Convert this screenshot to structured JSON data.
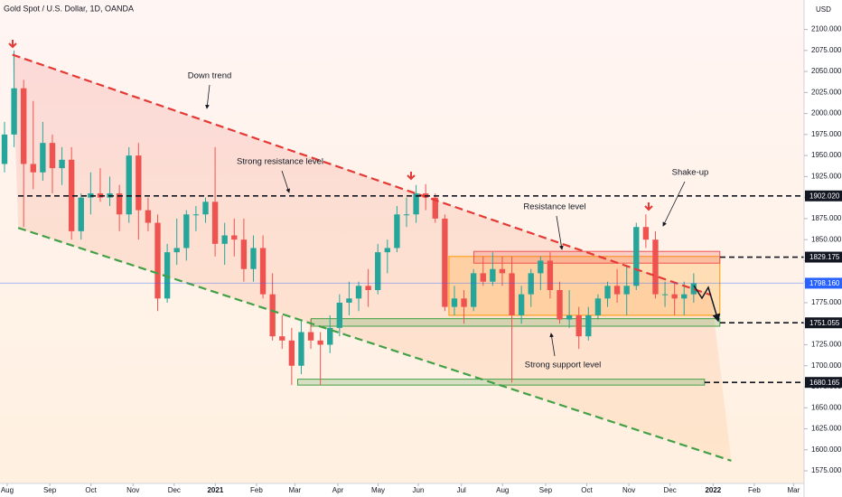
{
  "chart_data": {
    "type": "candlestick",
    "title": "Gold Spot / U.S. Dollar, 1D, OANDA",
    "axis_unit": "USD",
    "up_color": "#26a69a",
    "down_color": "#ef5350",
    "grid": false,
    "xlim": [
      0,
      84
    ],
    "xticks": [
      {
        "value": 0.75,
        "label": "Aug"
      },
      {
        "value": 5.2,
        "label": "Sep"
      },
      {
        "value": 9.5,
        "label": "Oct"
      },
      {
        "value": 13.9,
        "label": "Nov"
      },
      {
        "value": 18.2,
        "label": "Dec"
      },
      {
        "value": 22.5,
        "label": "2021"
      },
      {
        "value": 26.8,
        "label": "Feb"
      },
      {
        "value": 30.8,
        "label": "Mar"
      },
      {
        "value": 35.3,
        "label": "Apr"
      },
      {
        "value": 39.5,
        "label": "May"
      },
      {
        "value": 43.7,
        "label": "Jun"
      },
      {
        "value": 48.2,
        "label": "Jul"
      },
      {
        "value": 52.5,
        "label": "Aug"
      },
      {
        "value": 57.0,
        "label": "Sep"
      },
      {
        "value": 61.3,
        "label": "Oct"
      },
      {
        "value": 65.7,
        "label": "Nov"
      },
      {
        "value": 70.0,
        "label": "Dec"
      },
      {
        "value": 74.5,
        "label": "2022"
      },
      {
        "value": 78.8,
        "label": "Feb"
      },
      {
        "value": 82.9,
        "label": "Mar"
      }
    ],
    "ylim": [
      1560,
      2135
    ],
    "yticks": [
      {
        "value": 1575,
        "label": "1575.000"
      },
      {
        "value": 1600,
        "label": "1600.000"
      },
      {
        "value": 1625,
        "label": "1625.000"
      },
      {
        "value": 1650,
        "label": "1650.000"
      },
      {
        "value": 1675,
        "label": "1675.000"
      },
      {
        "value": 1700,
        "label": "1700.000"
      },
      {
        "value": 1725,
        "label": "1725.000"
      },
      {
        "value": 1750,
        "label": "1750.000"
      },
      {
        "value": 1775,
        "label": "1775.000"
      },
      {
        "value": 1800,
        "label": "1800.000"
      },
      {
        "value": 1825,
        "label": "1825.000"
      },
      {
        "value": 1850,
        "label": "1850.000"
      },
      {
        "value": 1875,
        "label": "1875.000"
      },
      {
        "value": 1900,
        "label": "1900.000"
      },
      {
        "value": 1925,
        "label": "1925.000"
      },
      {
        "value": 1950,
        "label": "1950.000"
      },
      {
        "value": 1975,
        "label": "1975.000"
      },
      {
        "value": 2000,
        "label": "2000.000"
      },
      {
        "value": 2025,
        "label": "2025.000"
      },
      {
        "value": 2050,
        "label": "2050.000"
      },
      {
        "value": 2075,
        "label": "2075.000"
      },
      {
        "value": 2100,
        "label": "2100.000"
      }
    ],
    "x": [
      0,
      1,
      2,
      3,
      4,
      5,
      6,
      7,
      8,
      9,
      10,
      11,
      12,
      13,
      14,
      15,
      16,
      17,
      18,
      19,
      20,
      21,
      22,
      23,
      24,
      25,
      26,
      27,
      28,
      29,
      30,
      31,
      32,
      33,
      34,
      35,
      36,
      37,
      38,
      39,
      40,
      41,
      42,
      43,
      44,
      45,
      46,
      47,
      48,
      49,
      50,
      51,
      52,
      53,
      54,
      55,
      56,
      57,
      58,
      59,
      60,
      61,
      62,
      63,
      64,
      65,
      66,
      67,
      68,
      69,
      70,
      71,
      72
    ],
    "open": [
      1940,
      1975,
      2030,
      1940,
      1930,
      1965,
      1935,
      1945,
      1860,
      1900,
      1905,
      1900,
      1905,
      1880,
      1950,
      1885,
      1870,
      1780,
      1835,
      1840,
      1880,
      1880,
      1895,
      1845,
      1855,
      1850,
      1815,
      1840,
      1785,
      1735,
      1730,
      1700,
      1740,
      1730,
      1725,
      1745,
      1775,
      1780,
      1795,
      1790,
      1835,
      1840,
      1880,
      1880,
      1905,
      1900,
      1875,
      1770,
      1780,
      1770,
      1810,
      1800,
      1815,
      1810,
      1760,
      1785,
      1810,
      1825,
      1790,
      1755,
      1760,
      1735,
      1760,
      1780,
      1795,
      1785,
      1795,
      1865,
      1850,
      1785,
      1785,
      1780,
      1785
    ],
    "high": [
      1990,
      2075,
      2040,
      2015,
      1990,
      1975,
      1960,
      1960,
      1905,
      1930,
      1935,
      1925,
      1915,
      1960,
      1965,
      1900,
      1880,
      1845,
      1875,
      1885,
      1890,
      1900,
      1960,
      1870,
      1875,
      1875,
      1855,
      1855,
      1810,
      1760,
      1745,
      1755,
      1755,
      1740,
      1760,
      1785,
      1800,
      1800,
      1815,
      1845,
      1850,
      1890,
      1900,
      1915,
      1916,
      1905,
      1880,
      1795,
      1790,
      1815,
      1830,
      1835,
      1830,
      1830,
      1795,
      1815,
      1830,
      1835,
      1800,
      1790,
      1770,
      1770,
      1785,
      1800,
      1815,
      1820,
      1870,
      1880,
      1860,
      1800,
      1800,
      1800,
      1810
    ],
    "low": [
      1930,
      1960,
      1865,
      1910,
      1920,
      1905,
      1915,
      1850,
      1850,
      1880,
      1895,
      1890,
      1860,
      1870,
      1850,
      1860,
      1765,
      1775,
      1820,
      1825,
      1860,
      1870,
      1830,
      1820,
      1830,
      1800,
      1800,
      1780,
      1730,
      1720,
      1677,
      1690,
      1720,
      1677,
      1715,
      1735,
      1760,
      1765,
      1770,
      1785,
      1810,
      1835,
      1865,
      1870,
      1885,
      1870,
      1765,
      1760,
      1750,
      1765,
      1795,
      1795,
      1795,
      1680,
      1750,
      1770,
      1790,
      1780,
      1750,
      1745,
      1720,
      1730,
      1755,
      1770,
      1775,
      1760,
      1790,
      1840,
      1780,
      1770,
      1760,
      1760,
      1775
    ],
    "close": [
      1975,
      2030,
      1940,
      1930,
      1965,
      1935,
      1945,
      1860,
      1900,
      1905,
      1900,
      1905,
      1880,
      1950,
      1885,
      1870,
      1780,
      1835,
      1840,
      1880,
      1880,
      1895,
      1845,
      1855,
      1850,
      1815,
      1840,
      1785,
      1735,
      1730,
      1700,
      1740,
      1730,
      1725,
      1745,
      1775,
      1780,
      1795,
      1790,
      1835,
      1840,
      1880,
      1880,
      1905,
      1900,
      1875,
      1770,
      1780,
      1770,
      1810,
      1800,
      1815,
      1810,
      1760,
      1785,
      1810,
      1825,
      1790,
      1755,
      1760,
      1735,
      1760,
      1780,
      1795,
      1785,
      1795,
      1865,
      1850,
      1785,
      1785,
      1780,
      1785,
      1798
    ],
    "trendlines": [
      {
        "color": "#e53935",
        "x": [
          1.3,
          74.3
        ],
        "y": [
          2070,
          1784
        ]
      },
      {
        "color": "#43a047",
        "x": [
          1.9,
          76.4
        ],
        "y": [
          1864,
          1587
        ]
      }
    ],
    "zones": [
      {
        "color": "#ff9800",
        "x": [
          46.9,
          75.2
        ],
        "y": [
          1760,
          1830
        ]
      },
      {
        "color": "#ef5350",
        "x": [
          49.5,
          75.2
        ],
        "y": [
          1822,
          1836
        ]
      },
      {
        "color": "#43a047",
        "x": [
          32.5,
          75.2
        ],
        "y": [
          1747,
          1756
        ]
      },
      {
        "color": "#43a047",
        "x": [
          31.1,
          73.6
        ],
        "y": [
          1677,
          1684
        ]
      }
    ],
    "levels": [
      {
        "value": 1902.02,
        "label": "1902.020"
      },
      {
        "value": 1829.175,
        "label": "1829.175"
      },
      {
        "value": 1751.055,
        "label": "1751.055"
      },
      {
        "value": 1680.165,
        "label": "1680.165"
      }
    ],
    "last_price": {
      "value": 1798.16,
      "label": "1798.160",
      "color": "#2962ff"
    },
    "annotations": [
      {
        "text": "Down trend"
      },
      {
        "text": "Strong resistance level"
      },
      {
        "text": "Resistance level"
      },
      {
        "text": "Shake-up"
      },
      {
        "text": "Strong support level"
      }
    ]
  }
}
